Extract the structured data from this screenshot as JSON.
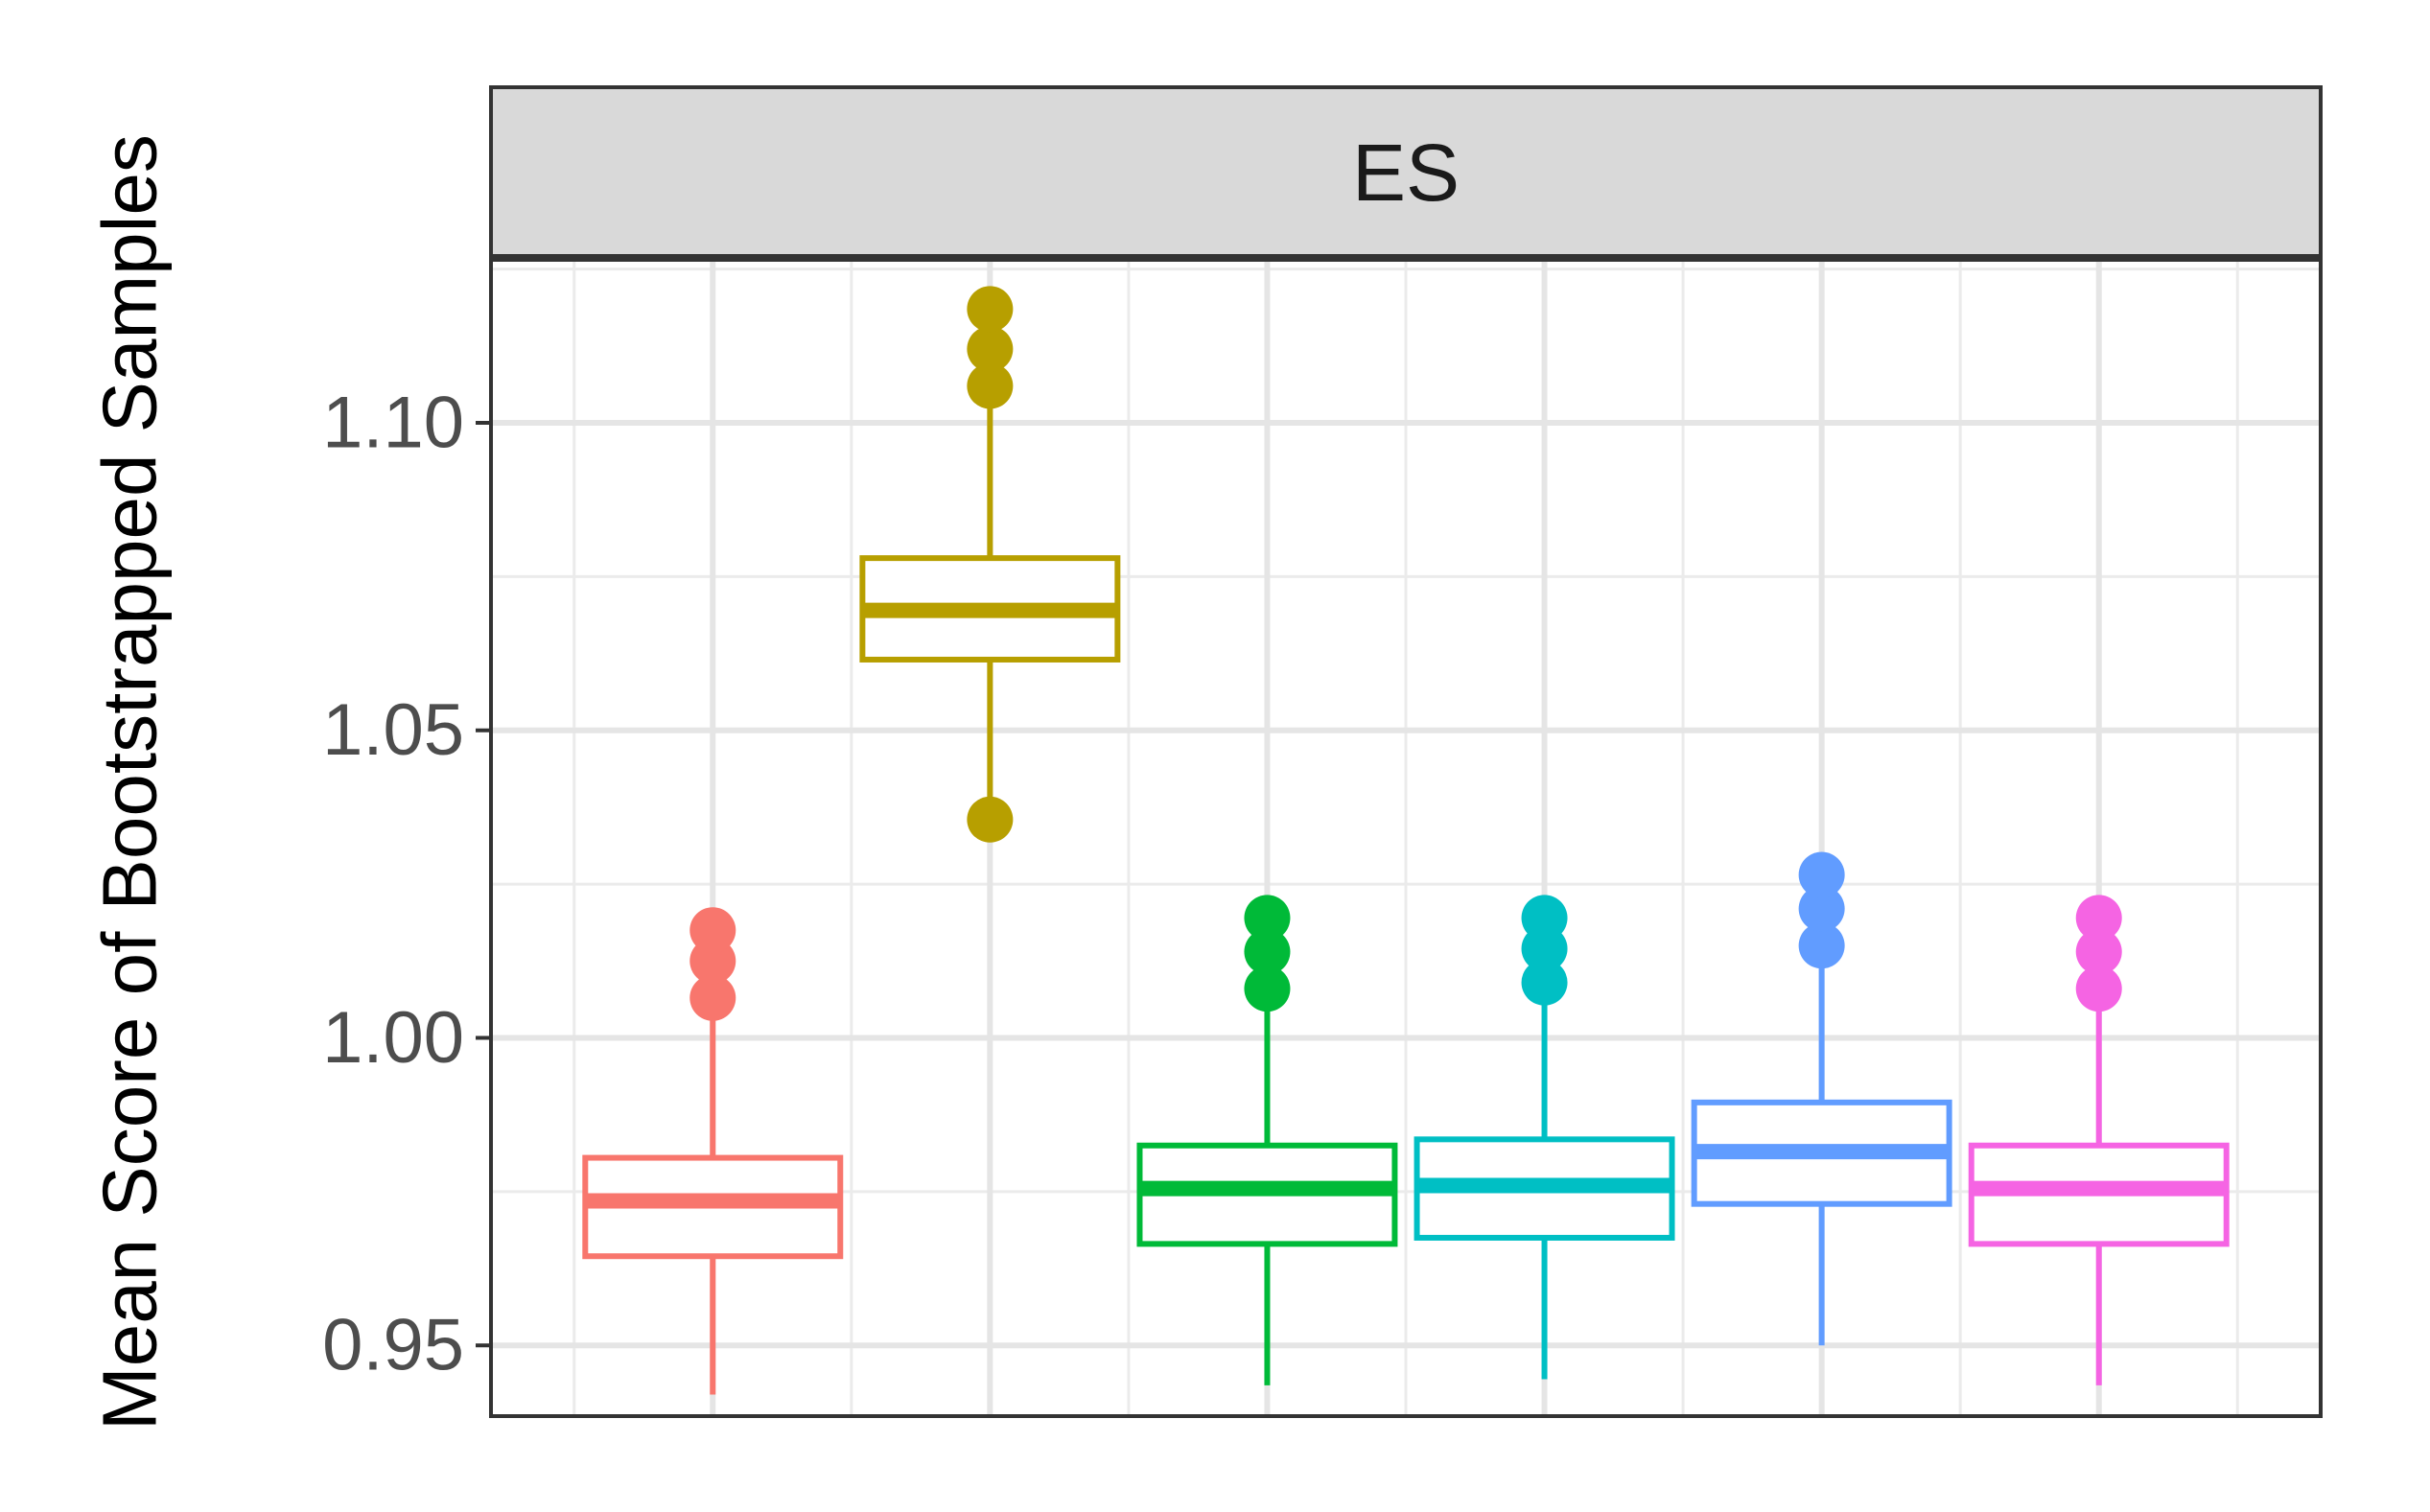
{
  "chart_data": {
    "type": "boxplot",
    "facet_label": "ES",
    "ylabel": "Mean Score of Bootstrapped Samples",
    "xlabel": "",
    "ylim": [
      0.9385,
      1.1265
    ],
    "yticks": [
      0.95,
      1.0,
      1.05,
      1.1
    ],
    "ytick_labels": [
      "0.95",
      "1.00",
      "1.05",
      "1.10"
    ],
    "grid": true,
    "legend": "none",
    "series": [
      {
        "color": "#F8766D",
        "min": 0.942,
        "q1": 0.9645,
        "median": 0.9735,
        "q3": 0.9805,
        "max": 1.0055,
        "outliers": [
          1.0065,
          1.0125,
          1.0175
        ]
      },
      {
        "color": "#B79F00",
        "min": 1.0355,
        "q1": 1.0615,
        "median": 1.0695,
        "q3": 1.078,
        "max": 1.1055,
        "outliers": [
          1.0355,
          1.106,
          1.112,
          1.1185
        ]
      },
      {
        "color": "#00BA38",
        "min": 0.9435,
        "q1": 0.9665,
        "median": 0.9755,
        "q3": 0.9825,
        "max": 1.008,
        "outliers": [
          1.008,
          1.014,
          1.0195
        ]
      },
      {
        "color": "#00BFC4",
        "min": 0.9445,
        "q1": 0.9675,
        "median": 0.976,
        "q3": 0.9835,
        "max": 1.0085,
        "outliers": [
          1.009,
          1.0145,
          1.0195
        ]
      },
      {
        "color": "#619CFF",
        "min": 0.95,
        "q1": 0.973,
        "median": 0.9815,
        "q3": 0.9895,
        "max": 1.015,
        "outliers": [
          1.015,
          1.021,
          1.0265
        ]
      },
      {
        "color": "#F564E3",
        "min": 0.9435,
        "q1": 0.9665,
        "median": 0.9755,
        "q3": 0.9825,
        "max": 1.008,
        "outliers": [
          1.008,
          1.014,
          1.0195
        ]
      }
    ]
  }
}
